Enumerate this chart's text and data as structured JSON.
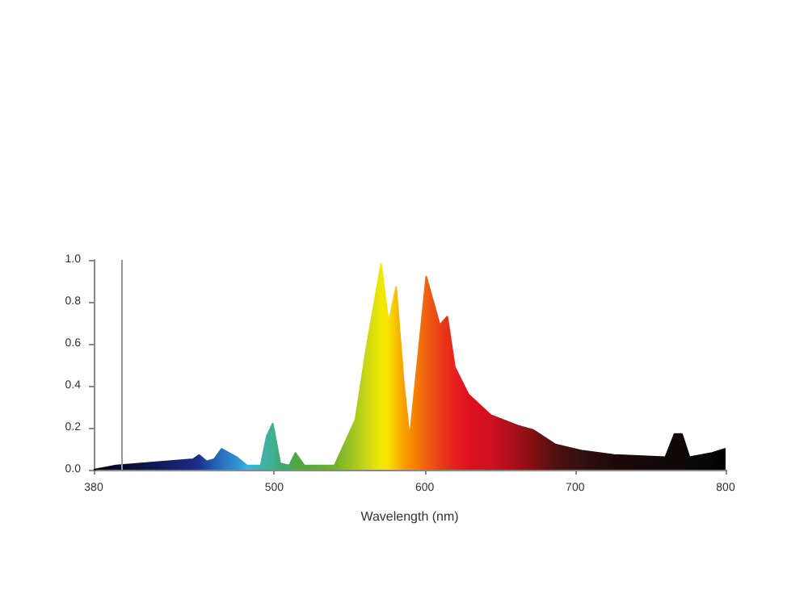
{
  "chart_data": {
    "type": "area",
    "xlabel": "Wavelength (nm)",
    "x": [
      380,
      395,
      446,
      450,
      455,
      460,
      465,
      475,
      482,
      491,
      495,
      499,
      504,
      510,
      514,
      520,
      540,
      554,
      561,
      571,
      576,
      581,
      586,
      590,
      601,
      610,
      615,
      620,
      629,
      644,
      662,
      672,
      687,
      705,
      726,
      760,
      766,
      771,
      776,
      791,
      800
    ],
    "series": [
      {
        "values": [
          0,
          0.02,
          0.05,
          0.07,
          0.04,
          0.05,
          0.1,
          0.06,
          0.02,
          0.02,
          0.16,
          0.22,
          0.03,
          0.02,
          0.08,
          0.02,
          0.02,
          0.24,
          0.57,
          0.98,
          0.7,
          0.87,
          0.42,
          0.15,
          0.92,
          0.69,
          0.73,
          0.49,
          0.36,
          0.26,
          0.21,
          0.19,
          0.12,
          0.09,
          0.07,
          0.06,
          0.17,
          0.17,
          0.06,
          0.08,
          0.1
        ],
        "colors": [
          "#000010",
          "#05082a",
          "#1a2a80",
          "#1a3090",
          "#1e4aa0",
          "#2060b0",
          "#2a70c0",
          "#3090d0",
          "#40b0d8",
          "#40b0b0",
          "#40b0a0",
          "#40b090",
          "#40a870",
          "#40a860",
          "#50a840",
          "#50a840",
          "#70b030",
          "#a8c820",
          "#c8d818",
          "#f0e800",
          "#f8e000",
          "#f8c000",
          "#f8a000",
          "#f89000",
          "#f06010",
          "#e84018",
          "#e83018",
          "#e82020",
          "#e01020",
          "#d01020",
          "#a01018",
          "#801010",
          "#501010",
          "#301010",
          "#200808",
          "#100808",
          "#100808",
          "#100808",
          "#080808",
          "#050505",
          "#000000"
        ]
      }
    ],
    "xlim": [
      380,
      800
    ],
    "xticks": [
      380,
      500,
      600,
      700,
      800
    ],
    "ylim": [
      0,
      1
    ],
    "yticks": [
      {
        "value": 0,
        "label": "0.0"
      },
      0.2,
      0.4,
      0.6,
      0.8,
      {
        "value": 1,
        "label": "1.0"
      }
    ],
    "ref_lines": [
      {
        "axis": "x",
        "value": 398,
        "color": "#999999"
      }
    ],
    "marker": "none",
    "grid": false
  }
}
